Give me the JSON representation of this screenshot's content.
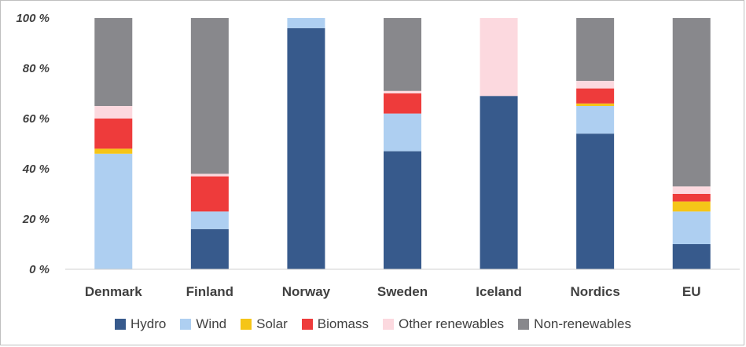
{
  "chart_data": {
    "type": "bar",
    "stacked": true,
    "categories": [
      "Denmark",
      "Finland",
      "Norway",
      "Sweden",
      "Iceland",
      "Nordics",
      "EU"
    ],
    "series": [
      {
        "name": "Hydro",
        "color": "#375A8C",
        "values": [
          0,
          16,
          96,
          47,
          69,
          54,
          10
        ]
      },
      {
        "name": "Wind",
        "color": "#AECFF1",
        "values": [
          46,
          7,
          4,
          15,
          0,
          11,
          13
        ]
      },
      {
        "name": "Solar",
        "color": "#F5C518",
        "values": [
          2,
          0,
          0,
          0,
          0,
          1,
          4
        ]
      },
      {
        "name": "Biomass",
        "color": "#EE3B3B",
        "values": [
          12,
          14,
          0,
          8,
          0,
          6,
          3
        ]
      },
      {
        "name": "Other renewables",
        "color": "#FCD9DF",
        "values": [
          5,
          1,
          0,
          1,
          31,
          3,
          3
        ]
      },
      {
        "name": "Non-renewables",
        "color": "#88888C",
        "values": [
          35,
          62,
          0,
          29,
          0,
          25,
          67
        ]
      }
    ],
    "yticks": [
      "0 %",
      "20 %",
      "40 %",
      "60 %",
      "80 %",
      "100 %"
    ],
    "ylim": [
      0,
      100
    ],
    "title": "",
    "xlabel": "",
    "ylabel": "",
    "grid": false,
    "legend_position": "bottom"
  }
}
